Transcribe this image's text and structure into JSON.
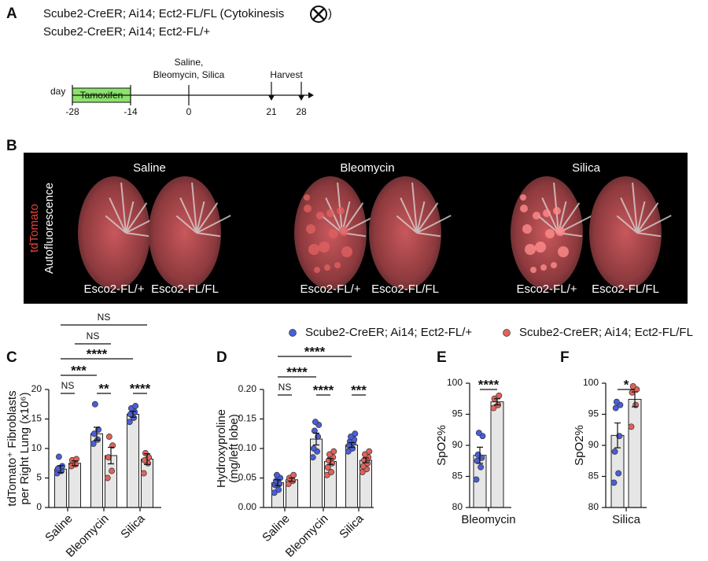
{
  "panel_labels": [
    "A",
    "B",
    "C",
    "D",
    "E",
    "F"
  ],
  "timeline": {
    "genotypes": [
      "Scube2-CreER; Ai14; Ect2-FL/FL (Cytokinesis",
      "Scube2-CreER; Ai14; Ect2-FL/+"
    ],
    "close_paren": ")",
    "day_label": "day",
    "treatment": "Tamoxifen",
    "days": [
      "-28",
      "-14",
      "0",
      "21",
      "28"
    ],
    "events": [
      "Saline,",
      "Bleomycin, Silica",
      "Harvest"
    ]
  },
  "images": {
    "channels": [
      "tdTomato",
      "Autofluorescence"
    ],
    "groups": [
      {
        "title": "Saline",
        "labels": [
          "Esco2-FL/+",
          "Esco2-FL/FL"
        ]
      },
      {
        "title": "Bleomycin",
        "labels": [
          "Esco2-FL/+",
          "Esco2-FL/FL"
        ]
      },
      {
        "title": "Silica",
        "labels": [
          "Esco2-FL/+",
          "Esco2-FL/FL"
        ]
      }
    ]
  },
  "chart_data": [
    {
      "type": "bar",
      "ylabel": [
        "tdTomato⁺ Fibroblasts",
        "per Right Lung (x10⁶)"
      ],
      "categories": [
        "Saline",
        "Bleomycin",
        "Silica"
      ],
      "ylim": [
        0,
        20
      ],
      "yticks": [
        0,
        5,
        10,
        15,
        20
      ],
      "series": [
        {
          "color": "#4a5ed8",
          "values": [
            6.5,
            12.5,
            15.8
          ],
          "errors": [
            0.6,
            1.1,
            0.5
          ],
          "points": [
            [
              5.8,
              6.2,
              6.6,
              7.0,
              8.6
            ],
            [
              10.8,
              11.5,
              12.5,
              13.2,
              17.5
            ],
            [
              14.5,
              15.2,
              15.8,
              16.2,
              16.8,
              17.2
            ]
          ]
        },
        {
          "color": "#e0635a",
          "values": [
            7.5,
            8.8,
            8.2
          ],
          "errors": [
            0.4,
            1.4,
            0.9
          ],
          "points": [
            [
              7.0,
              7.3,
              8.0,
              8.2
            ],
            [
              5.0,
              6.2,
              8.5,
              10.5,
              12.0
            ],
            [
              5.8,
              7.5,
              8.0,
              8.5,
              9.2
            ]
          ]
        }
      ],
      "annotations": [
        "NS",
        "**",
        "****",
        "***",
        "****",
        "NS",
        "NS"
      ]
    },
    {
      "type": "bar",
      "ylabel": [
        "Hydroxyproline",
        "(mg/left lobe)"
      ],
      "categories": [
        "Saline",
        "Bleomycin",
        "Silica"
      ],
      "ylim": [
        0,
        0.2
      ],
      "yticks": [
        {
          "value": 0,
          "label": "0.00"
        },
        0.05,
        {
          "value": 0.1,
          "label": "0.10"
        },
        0.15,
        {
          "value": 0.2,
          "label": "0.20"
        }
      ],
      "series": [
        {
          "name": "Scube2-CreER; Ai14; Ect2-FL/+",
          "color": "#4a5ed8",
          "values": [
            0.042,
            0.116,
            0.106
          ],
          "errors": [
            0.005,
            0.01,
            0.004
          ],
          "points": [
            [
              0.025,
              0.03,
              0.038,
              0.04,
              0.045,
              0.05,
              0.055
            ],
            [
              0.085,
              0.095,
              0.1,
              0.12,
              0.13,
              0.14,
              0.145
            ],
            [
              0.095,
              0.1,
              0.105,
              0.11,
              0.112,
              0.115,
              0.12,
              0.125
            ]
          ]
        },
        {
          "name": "Scube2-CreER; Ai14; Ect2-FL/FL",
          "color": "#e0635a",
          "values": [
            0.047,
            0.078,
            0.08
          ],
          "errors": [
            0.003,
            0.005,
            0.004
          ],
          "points": [
            [
              0.04,
              0.045,
              0.05,
              0.055
            ],
            [
              0.055,
              0.06,
              0.068,
              0.075,
              0.08,
              0.085,
              0.09,
              0.095
            ],
            [
              0.06,
              0.065,
              0.07,
              0.075,
              0.08,
              0.085,
              0.09,
              0.095
            ]
          ]
        }
      ],
      "annotations": [
        "NS",
        "****",
        "***",
        "****",
        "****"
      ]
    },
    {
      "type": "bar",
      "ylabel": [
        "SpO2%"
      ],
      "categories": [
        "Bleomycin"
      ],
      "ylim": [
        80,
        100
      ],
      "yticks": [
        80,
        85,
        90,
        95,
        100
      ],
      "series": [
        {
          "color": "#4a5ed8",
          "values": [
            88.4
          ],
          "errors": [
            1.3
          ],
          "points": [
            [
              84.5,
              86.5,
              87.5,
              88,
              88.5,
              91.5,
              92
            ]
          ]
        },
        {
          "color": "#e0635a",
          "values": [
            97
          ],
          "errors": [
            0.5
          ],
          "points": [
            [
              96,
              96.5,
              97.5,
              98
            ]
          ]
        }
      ],
      "annotations": [
        "****"
      ]
    },
    {
      "type": "bar",
      "ylabel": [
        "SpO2%"
      ],
      "categories": [
        "Silica"
      ],
      "ylim": [
        80,
        100
      ],
      "yticks": [
        80,
        85,
        90,
        95,
        100
      ],
      "series": [
        {
          "color": "#4a5ed8",
          "values": [
            91.6
          ],
          "errors": [
            2
          ],
          "points": [
            [
              84,
              85.5,
              89,
              91.5,
              96,
              96.5,
              97
            ]
          ]
        },
        {
          "color": "#e0635a",
          "values": [
            97.4
          ],
          "errors": [
            1.2
          ],
          "points": [
            [
              93,
              96.5,
              98.5,
              99,
              99.5
            ]
          ]
        }
      ],
      "annotations": [
        "*"
      ]
    }
  ]
}
